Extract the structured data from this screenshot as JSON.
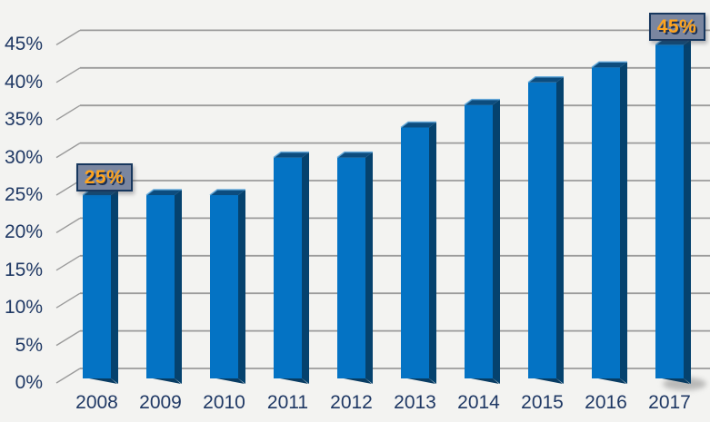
{
  "chart_data": {
    "type": "bar",
    "style": "3d-column",
    "title": "",
    "xlabel": "",
    "ylabel": "",
    "categories": [
      "2008",
      "2009",
      "2010",
      "2011",
      "2012",
      "2013",
      "2014",
      "2015",
      "2016",
      "2017"
    ],
    "values": [
      25,
      25,
      25,
      30,
      30,
      34,
      37,
      40,
      42,
      45
    ],
    "unit": "%",
    "ylim": [
      0,
      45
    ],
    "ytick_step": 5,
    "ytick_labels": [
      "0%",
      "5%",
      "10%",
      "15%",
      "20%",
      "25%",
      "30%",
      "35%",
      "40%",
      "45%"
    ],
    "grid": true,
    "legend": "none",
    "data_labels": [
      {
        "category": "2008",
        "text": "25%"
      },
      {
        "category": "2017",
        "text": "45%"
      }
    ],
    "colors": {
      "background": "#F3F3F1",
      "gridline": "#9B9B9B",
      "axis_text": "#1F3864",
      "bar_front": "#0473C4",
      "bar_side": "#05426E",
      "bar_top": "#0C4C7E",
      "bar_highlight": "#5EA7DC",
      "bar_base_shadow": "#083C63",
      "label_box_fill": "#7A86A0",
      "label_box_border": "#17375E",
      "label_text": "#FFA41E"
    }
  }
}
